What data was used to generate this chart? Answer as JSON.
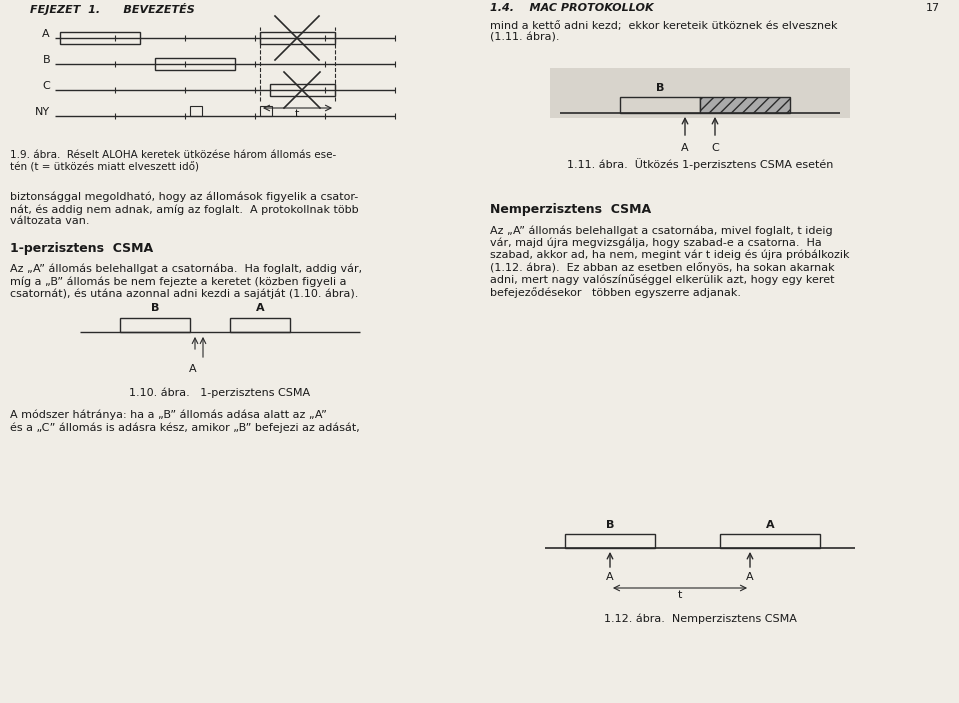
{
  "bg_color": "#f0ede6",
  "text_color": "#1a1a1a",
  "page_width": 9.59,
  "page_height": 7.03,
  "fig1_labels": [
    "A",
    "B",
    "C",
    "NY"
  ],
  "line_color": "#2a2a2a",
  "hatch_color": "#888888"
}
